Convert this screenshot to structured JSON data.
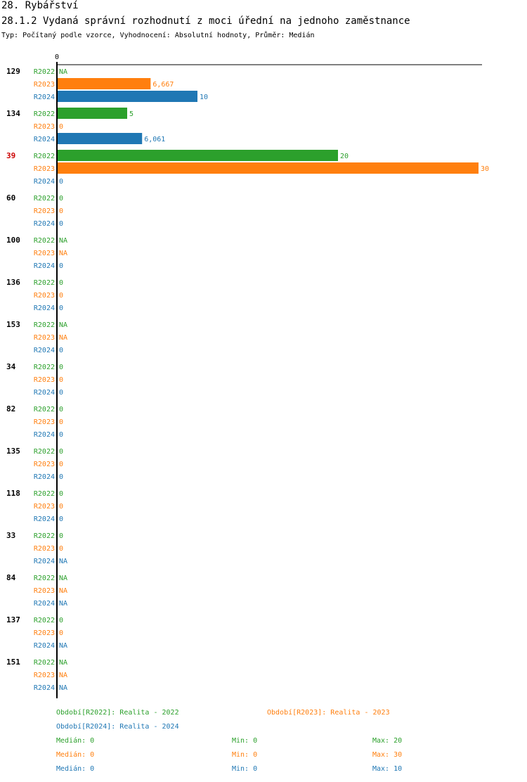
{
  "header": {
    "title": "28. Rybářství",
    "subtitle": "28.1.2 Vydaná správní rozhodnutí z moci úřední na jednoho zaměstnance",
    "info": "Typ: Počítaný podle vzorce, Vyhodnocení: Absolutní hodnoty, Průměr: Medián"
  },
  "colors": {
    "R2022": "#2ca02c",
    "R2023": "#ff7f0e",
    "R2024": "#1f77b4",
    "highlight": "#cc0000"
  },
  "chart_data": {
    "type": "bar",
    "orientation": "horizontal",
    "xlim": [
      0,
      30
    ],
    "axis_top_label": "0",
    "series": [
      {
        "name": "R2022",
        "legend": "Období[R2022]: Realita - 2022"
      },
      {
        "name": "R2023",
        "legend": "Období[R2023]: Realita - 2023"
      },
      {
        "name": "R2024",
        "legend": "Období[R2024]: Realita - 2024"
      }
    ],
    "groups": [
      {
        "label": "129",
        "highlight": false,
        "values": [
          null,
          6.667,
          10
        ],
        "labels": [
          "NA",
          "6,667",
          "10"
        ]
      },
      {
        "label": "134",
        "highlight": false,
        "values": [
          5,
          0,
          6.061
        ],
        "labels": [
          "5",
          "0",
          "6,061"
        ]
      },
      {
        "label": "39",
        "highlight": true,
        "values": [
          20,
          30,
          0
        ],
        "labels": [
          "20",
          "30",
          "0"
        ]
      },
      {
        "label": "60",
        "highlight": false,
        "values": [
          0,
          0,
          0
        ],
        "labels": [
          "0",
          "0",
          "0"
        ]
      },
      {
        "label": "100",
        "highlight": false,
        "values": [
          null,
          null,
          0
        ],
        "labels": [
          "NA",
          "NA",
          "0"
        ]
      },
      {
        "label": "136",
        "highlight": false,
        "values": [
          0,
          0,
          0
        ],
        "labels": [
          "0",
          "0",
          "0"
        ]
      },
      {
        "label": "153",
        "highlight": false,
        "values": [
          null,
          null,
          0
        ],
        "labels": [
          "NA",
          "NA",
          "0"
        ]
      },
      {
        "label": "34",
        "highlight": false,
        "values": [
          0,
          0,
          0
        ],
        "labels": [
          "0",
          "0",
          "0"
        ]
      },
      {
        "label": "82",
        "highlight": false,
        "values": [
          0,
          0,
          0
        ],
        "labels": [
          "0",
          "0",
          "0"
        ]
      },
      {
        "label": "135",
        "highlight": false,
        "values": [
          0,
          0,
          0
        ],
        "labels": [
          "0",
          "0",
          "0"
        ]
      },
      {
        "label": "118",
        "highlight": false,
        "values": [
          0,
          0,
          0
        ],
        "labels": [
          "0",
          "0",
          "0"
        ]
      },
      {
        "label": "33",
        "highlight": false,
        "values": [
          0,
          0,
          null
        ],
        "labels": [
          "0",
          "0",
          "NA"
        ]
      },
      {
        "label": "84",
        "highlight": false,
        "values": [
          null,
          null,
          null
        ],
        "labels": [
          "NA",
          "NA",
          "NA"
        ]
      },
      {
        "label": "137",
        "highlight": false,
        "values": [
          0,
          0,
          null
        ],
        "labels": [
          "0",
          "0",
          "NA"
        ]
      },
      {
        "label": "151",
        "highlight": false,
        "values": [
          null,
          null,
          null
        ],
        "labels": [
          "NA",
          "NA",
          "NA"
        ]
      }
    ],
    "stats": [
      {
        "series": "R2022",
        "median": "Medián: 0",
        "min": "Min: 0",
        "max": "Max: 20"
      },
      {
        "series": "R2023",
        "median": "Medián: 0",
        "min": "Min: 0",
        "max": "Max: 30"
      },
      {
        "series": "R2024",
        "median": "Medián: 0",
        "min": "Min: 0",
        "max": "Max: 10"
      }
    ]
  }
}
